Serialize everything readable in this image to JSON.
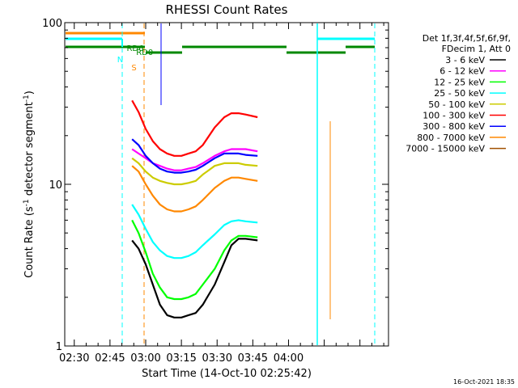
{
  "chart_data": {
    "type": "line",
    "title": "RHESSI Count Rates",
    "xlabel": "Start Time (14-Oct-10 02:25:42)",
    "ylabel": "Count Rate (s",
    "ylabel_sup": "-1",
    "ylabel_tail": " detector segment",
    "ylabel_sup2": "-1",
    "ylabel_close": ")",
    "yscale": "log",
    "ylim": [
      1,
      100
    ],
    "yticks": [
      {
        "value": 1,
        "label": "1"
      },
      {
        "value": 10,
        "label": "10"
      },
      {
        "value": 100,
        "label": "100"
      }
    ],
    "xlim_min": [
      146,
      282
    ],
    "xticks": [
      {
        "min": 150,
        "label": "02:30"
      },
      {
        "min": 165,
        "label": "02:45"
      },
      {
        "min": 180,
        "label": "03:00"
      },
      {
        "min": 195,
        "label": "03:15"
      },
      {
        "min": 210,
        "label": "03:30"
      },
      {
        "min": 225,
        "label": "03:45"
      },
      {
        "min": 240,
        "label": "04:00"
      }
    ],
    "legend": {
      "placement": "right",
      "header": [
        "Det 1f,3f,4f,5f,6f,9f,",
        "FDecim 1, Att 0"
      ]
    },
    "series": [
      {
        "name": "3 - 6 keV",
        "color": "#000000",
        "values": [
          4.5,
          4.0,
          3.2,
          2.4,
          1.8,
          1.55,
          1.5,
          1.5,
          1.55,
          1.6,
          1.8,
          2.4,
          3.3,
          4.2,
          4.6,
          4.6,
          4.5
        ]
      },
      {
        "name": "6 - 12 keV",
        "color": "#ff00ff",
        "values": [
          16.5,
          15.5,
          14.5,
          13.5,
          13.0,
          12.5,
          12.2,
          12.2,
          12.5,
          12.8,
          13.5,
          15.0,
          16.0,
          16.5,
          16.5,
          16.5,
          16.0
        ]
      },
      {
        "name": "12 - 25 keV",
        "color": "#00ff00",
        "values": [
          6.0,
          5.0,
          3.8,
          2.8,
          2.3,
          2.0,
          1.95,
          1.95,
          2.0,
          2.1,
          2.4,
          3.0,
          3.9,
          4.5,
          4.8,
          4.8,
          4.7
        ]
      },
      {
        "name": "25 - 50 keV",
        "color": "#00ffff",
        "values": [
          7.5,
          6.5,
          5.3,
          4.4,
          3.9,
          3.6,
          3.5,
          3.5,
          3.6,
          3.8,
          4.2,
          4.9,
          5.6,
          5.9,
          6.0,
          5.9,
          5.8
        ]
      },
      {
        "name": "50 - 100 keV",
        "color": "#cccc00",
        "values": [
          14.5,
          13.5,
          12.0,
          11.0,
          10.5,
          10.2,
          10.0,
          10.0,
          10.2,
          10.5,
          11.5,
          13.0,
          13.5,
          13.5,
          13.5,
          13.2,
          13.0
        ]
      },
      {
        "name": "100 - 300 keV",
        "color": "#ff0000",
        "values": [
          33.0,
          28.0,
          22.0,
          18.5,
          16.5,
          15.5,
          15.0,
          15.0,
          15.5,
          16.0,
          17.5,
          22.5,
          26.0,
          27.5,
          27.5,
          27.0,
          26.0
        ]
      },
      {
        "name": "300 - 800 keV",
        "color": "#0000ff",
        "values": [
          19.0,
          17.5,
          15.0,
          13.5,
          12.5,
          12.0,
          11.8,
          11.8,
          12.0,
          12.3,
          13.0,
          14.5,
          15.5,
          15.5,
          15.5,
          15.2,
          15.0
        ]
      },
      {
        "name": "800 - 7000 keV",
        "color": "#ff8800",
        "values": [
          13.0,
          12.0,
          10.0,
          8.5,
          7.5,
          7.0,
          6.8,
          6.8,
          7.0,
          7.3,
          8.0,
          9.5,
          10.5,
          11.0,
          11.0,
          10.8,
          10.5
        ]
      },
      {
        "name": "7000 - 15000 keV",
        "color": "#a05000",
        "values": []
      }
    ],
    "series_x_min": [
      174.3,
      177,
      180,
      183,
      186,
      189,
      192,
      195,
      198,
      201,
      204,
      209,
      213,
      216,
      219,
      222,
      227
    ],
    "annotations": [
      {
        "text": "S",
        "color": "#ff8800",
        "x_min": 174,
        "y": 87
      },
      {
        "text": "N",
        "color": "#00ffff",
        "x_min": 168,
        "y": 77
      },
      {
        "text": "RD6",
        "color": "#008800",
        "x_min": 172,
        "y": 63
      },
      {
        "text": "RD0",
        "color": "#008800",
        "x_min": 176,
        "y": 68
      }
    ],
    "footer": "16-Oct-2021 18:35"
  }
}
